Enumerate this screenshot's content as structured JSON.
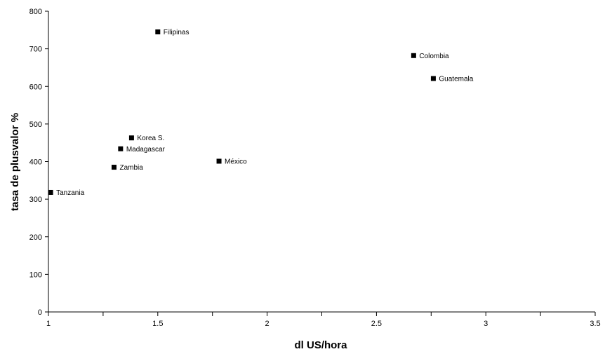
{
  "chart_data": {
    "type": "scatter",
    "title": "",
    "xlabel": "dl US/hora",
    "ylabel": "tasa de plusvalor %",
    "xlim": [
      1,
      3.5
    ],
    "ylim": [
      0,
      800
    ],
    "x_ticks": [
      1,
      1.5,
      2,
      2.5,
      3,
      3.5
    ],
    "x_tick_labels": [
      "1",
      "1.5",
      "2",
      "2.5",
      "3",
      "3.5"
    ],
    "x_minor_ticks": [
      1.25,
      1.75,
      2.25,
      2.75,
      3.25
    ],
    "y_ticks": [
      0,
      100,
      200,
      300,
      400,
      500,
      600,
      700,
      800
    ],
    "y_tick_labels": [
      "0",
      "100",
      "200",
      "300",
      "400",
      "500",
      "600",
      "700",
      "800"
    ],
    "grid": false,
    "legend": "none",
    "marker_color": "#000000",
    "points": [
      {
        "label": "Filipinas",
        "x": 1.5,
        "y": 745
      },
      {
        "label": "Colombia",
        "x": 2.67,
        "y": 682
      },
      {
        "label": "Guatemala",
        "x": 2.76,
        "y": 621
      },
      {
        "label": "Korea S.",
        "x": 1.38,
        "y": 463
      },
      {
        "label": "Madagascar",
        "x": 1.33,
        "y": 434
      },
      {
        "label": "México",
        "x": 1.78,
        "y": 401
      },
      {
        "label": "Zambia",
        "x": 1.3,
        "y": 385
      },
      {
        "label": "Tanzania",
        "x": 1.01,
        "y": 318
      }
    ]
  }
}
